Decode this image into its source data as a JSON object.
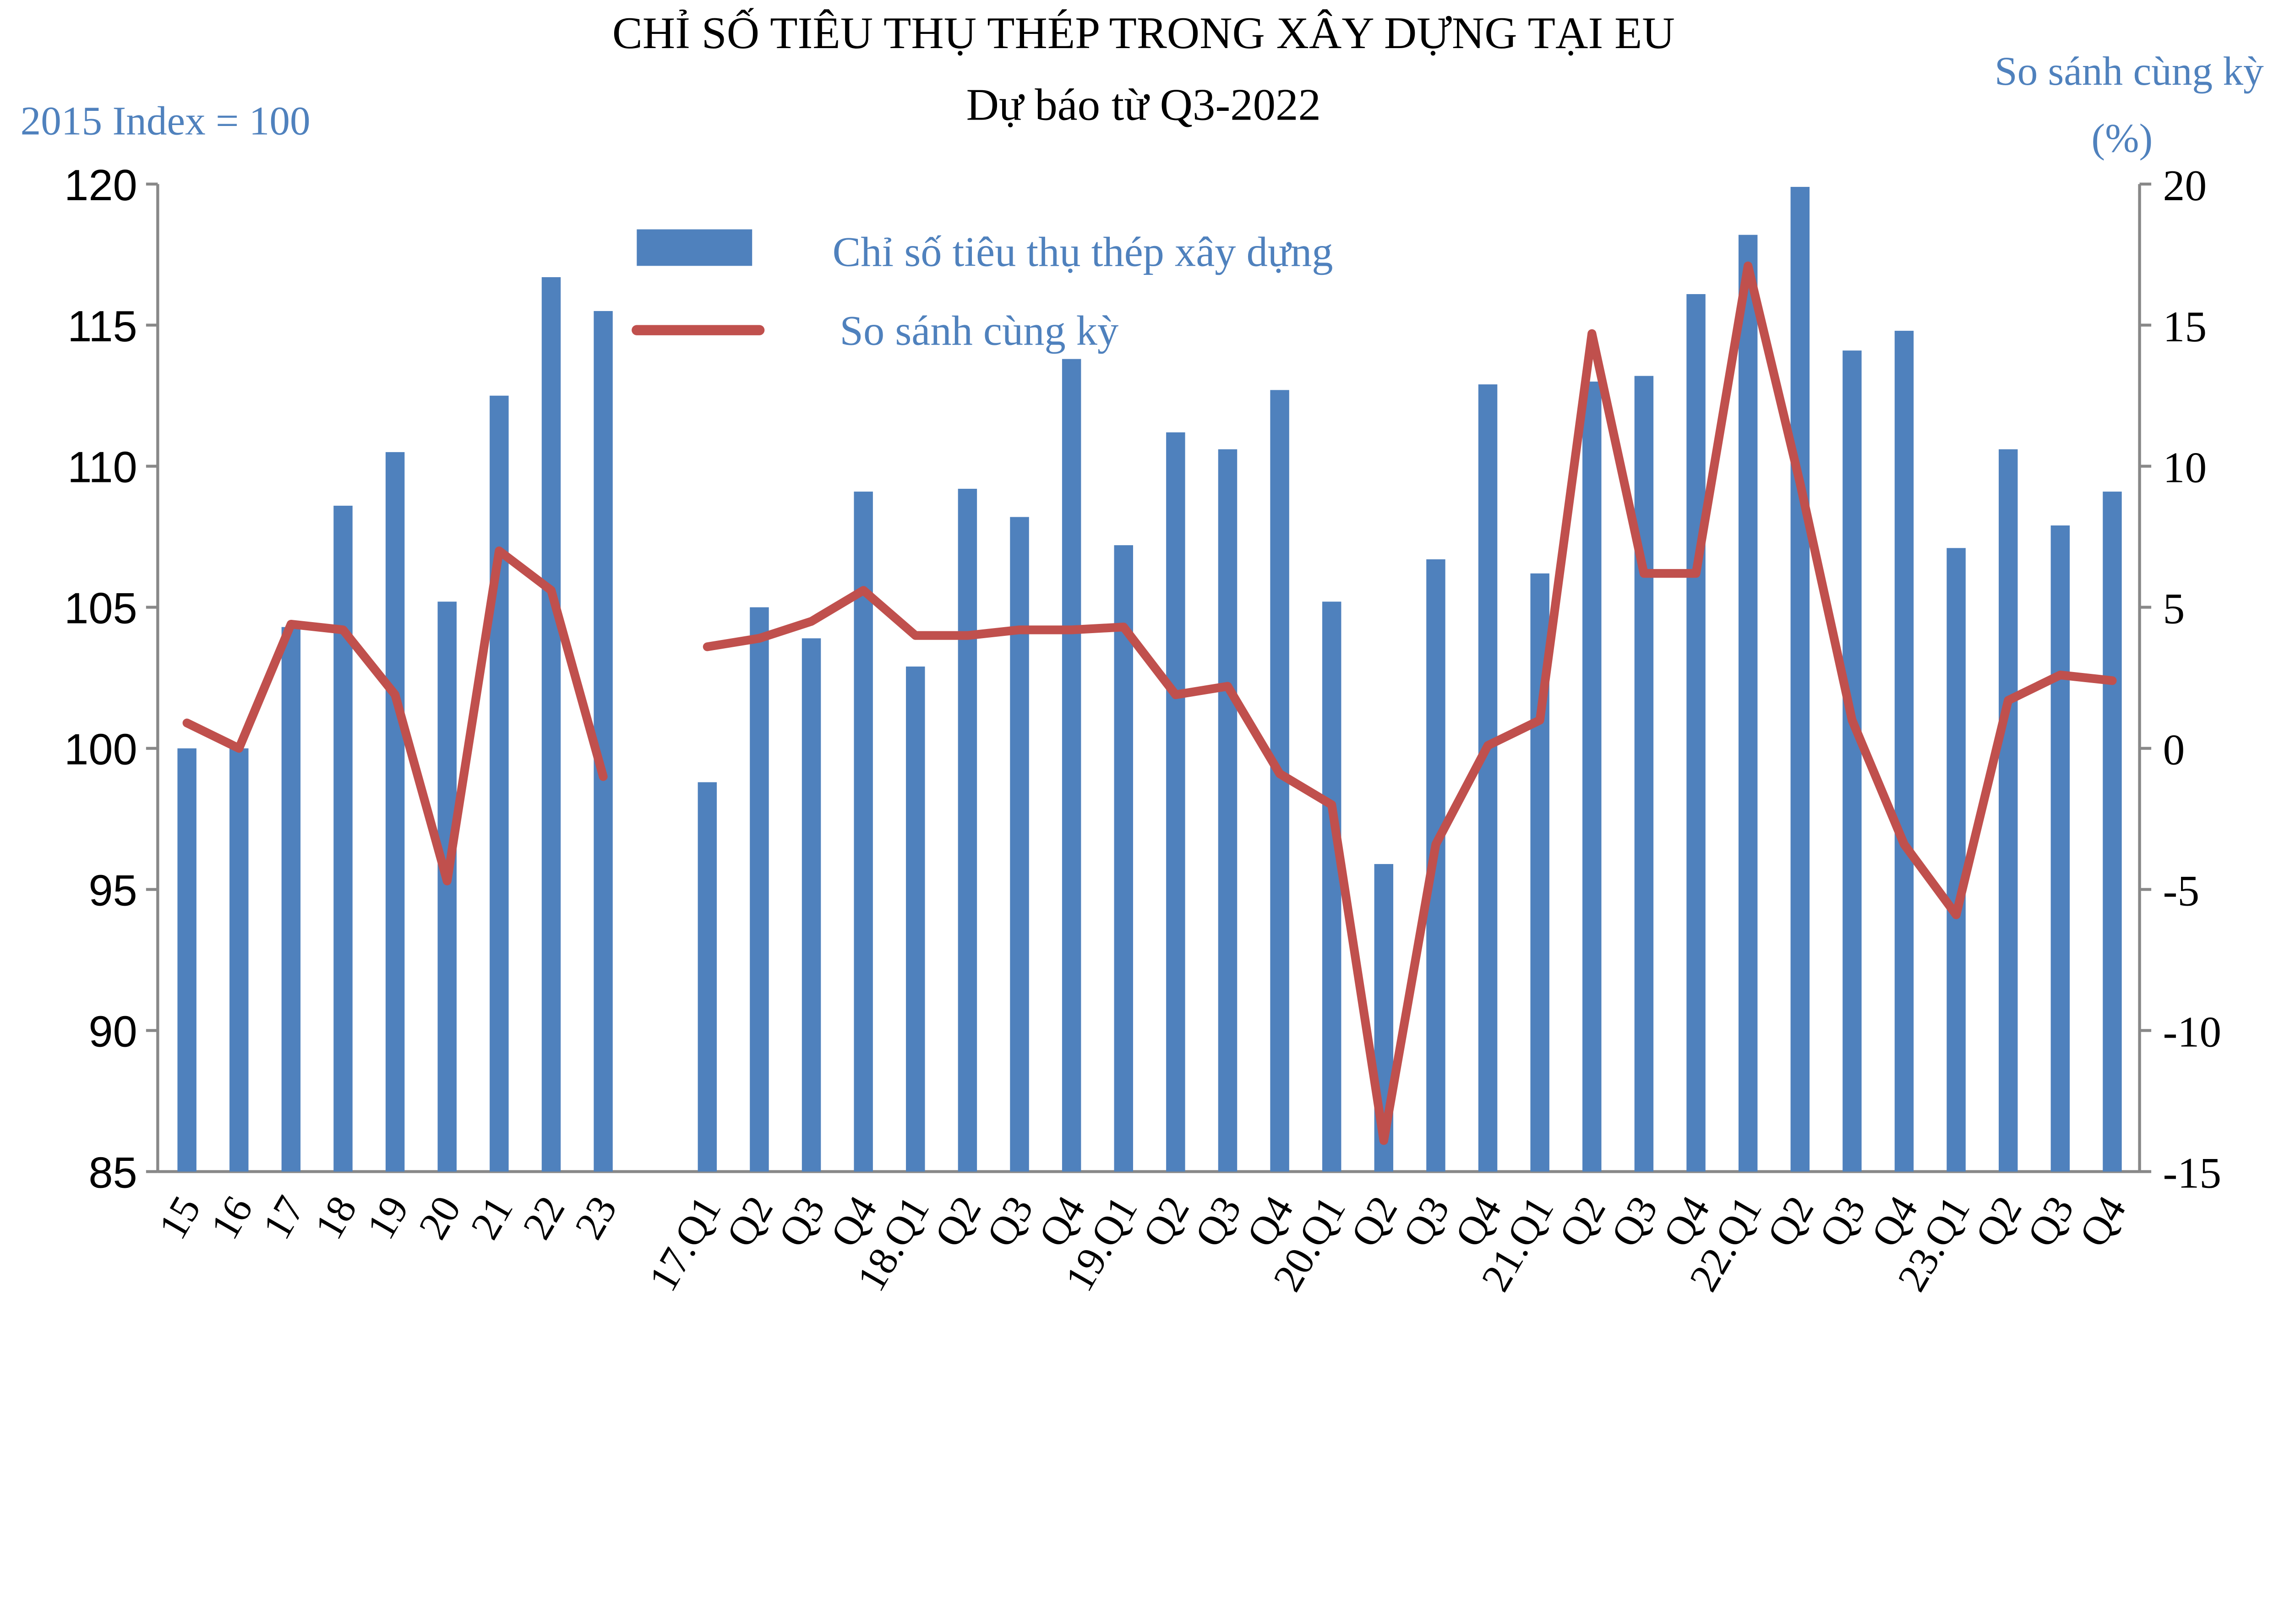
{
  "chart_data": {
    "type": "bar+line",
    "title": "CHỈ SỐ TIÊU THỤ THÉP TRONG XÂY DỰNG TẠI EU",
    "subtitle": "Dự báo từ Q3-2022",
    "ylabel_left": "2015 Index = 100",
    "ylabel_right": "So sánh cùng kỳ (%)",
    "ylim_left": [
      85,
      120
    ],
    "yticks_left": [
      "120",
      "115",
      "110",
      "105",
      "100",
      "95",
      "90",
      "85"
    ],
    "ylim_right": [
      -15,
      20
    ],
    "yticks_right": [
      "20",
      "15",
      "10",
      "5",
      "0",
      "-5",
      "-10",
      "-15"
    ],
    "grid": false,
    "legend_position": "top-center",
    "colors": {
      "bars": "#4f81bd",
      "line": "#c0504d",
      "label_blue": "#4f81bd"
    },
    "groups": [
      {
        "categories": [
          "15",
          "16",
          "17",
          "18",
          "19",
          "20",
          "21",
          "22",
          "23"
        ]
      },
      {
        "categories": [
          "17.Q1",
          "Q2",
          "Q3",
          "Q4",
          "18.Q1",
          "Q2",
          "Q3",
          "Q4",
          "19.Q1",
          "Q2",
          "Q3",
          "Q4",
          "20.Q1",
          "Q2",
          "Q3",
          "Q4",
          "21.Q1",
          "Q2",
          "Q3",
          "Q4",
          "22.Q1",
          "Q2",
          "Q3",
          "Q4",
          "23.Q1",
          "Q2",
          "Q3",
          "Q4"
        ]
      }
    ],
    "series": [
      {
        "name": "Chỉ số tiêu thụ thép xây dựng",
        "type": "bar",
        "axis": "left",
        "values": [
          [
            100.0,
            100.0,
            104.3,
            108.6,
            110.5,
            105.2,
            112.5,
            116.7,
            115.5
          ],
          [
            98.8,
            105.0,
            103.9,
            109.1,
            102.9,
            109.2,
            108.2,
            113.8,
            107.2,
            111.2,
            110.6,
            112.7,
            105.2,
            95.9,
            106.7,
            112.9,
            106.2,
            113.0,
            113.2,
            116.1,
            118.2,
            119.9,
            114.1,
            114.8,
            107.1,
            110.6,
            107.9,
            109.1
          ]
        ]
      },
      {
        "name": "So sánh cùng kỳ",
        "type": "line",
        "axis": "right",
        "values": [
          [
            0.9,
            0.0,
            4.4,
            4.2,
            1.9,
            -4.7,
            7.0,
            5.6,
            -1.0
          ],
          [
            3.6,
            3.9,
            4.5,
            5.6,
            4.0,
            4.0,
            4.2,
            4.2,
            4.3,
            1.9,
            2.2,
            -0.9,
            -2.0,
            -13.9,
            -3.4,
            0.1,
            1.0,
            14.7,
            6.2,
            6.2,
            17.1,
            9.4,
            1.0,
            -3.4,
            -5.9,
            1.7,
            2.6,
            2.4
          ]
        ]
      }
    ]
  }
}
